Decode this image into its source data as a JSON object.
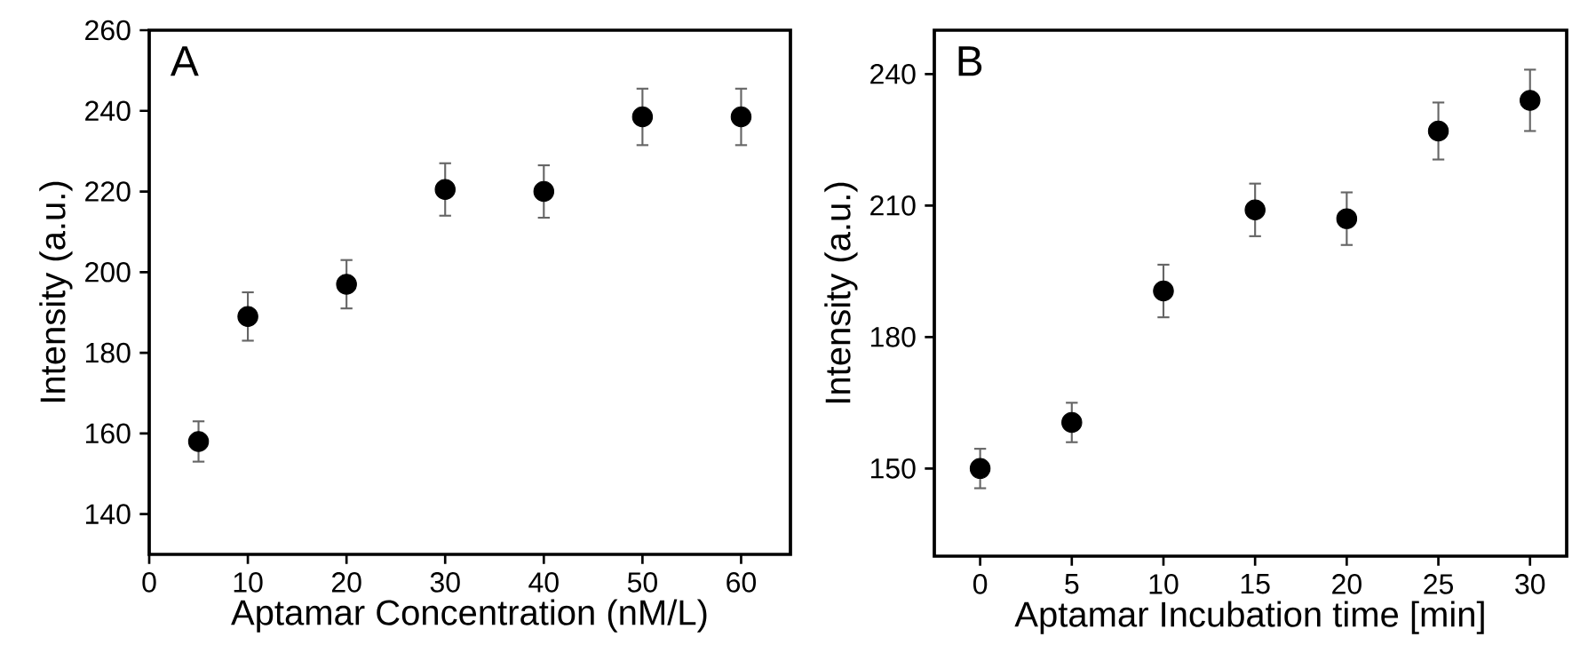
{
  "chart_data": [
    {
      "type": "scatter",
      "annotations": [
        "A"
      ],
      "xlabel": "Aptamar Concentration (nM/L)",
      "ylabel": "Intensity (a.u.)",
      "x": [
        5,
        10,
        20,
        30,
        40,
        50,
        60
      ],
      "marker": "circle",
      "series": [
        {
          "color": "#000000",
          "values": [
            158,
            189,
            197,
            220.5,
            220,
            238.5,
            238.5
          ],
          "errors": [
            5,
            6,
            6,
            6.5,
            6.5,
            7,
            7
          ]
        }
      ],
      "xlim": [
        0,
        65
      ],
      "ylim": [
        130,
        260
      ],
      "xticks": [
        0,
        10,
        20,
        30,
        40,
        50,
        60
      ],
      "yticks": [
        140,
        160,
        180,
        200,
        220,
        240,
        260
      ]
    },
    {
      "type": "scatter",
      "annotations": [
        "B"
      ],
      "xlabel": "Aptamar Incubation time [min]",
      "ylabel": "Intensity (a.u.)",
      "x": [
        0,
        5,
        10,
        15,
        20,
        25,
        30
      ],
      "marker": "circle",
      "series": [
        {
          "color": "#000000",
          "values": [
            150,
            160.5,
            190.5,
            209,
            207,
            227,
            234
          ],
          "errors": [
            4.5,
            4.5,
            6,
            6,
            6,
            6.5,
            7
          ]
        }
      ],
      "xlim": [
        -2.5,
        32
      ],
      "ylim": [
        130,
        250
      ],
      "xticks": [
        0,
        5,
        10,
        15,
        20,
        25,
        30
      ],
      "yticks": [
        150,
        180,
        210,
        240
      ]
    }
  ]
}
